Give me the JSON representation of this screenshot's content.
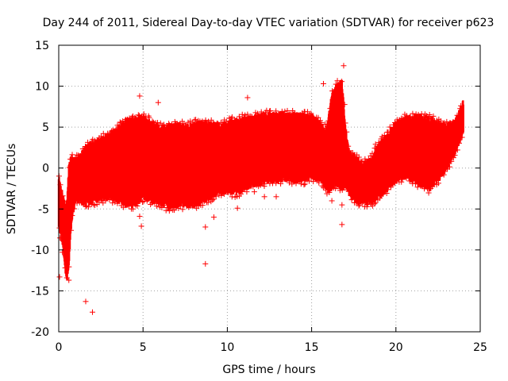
{
  "chart_data": {
    "type": "scatter",
    "title": "Day 244 of 2011, Sidereal Day-to-day VTEC variation (SDTVAR) for receiver p623",
    "xlabel": "GPS time / hours",
    "ylabel": "SDTVAR / TECUs",
    "xlim": [
      0,
      25
    ],
    "ylim": [
      -20,
      15
    ],
    "xticks": [
      0,
      5,
      10,
      15,
      20,
      25
    ],
    "yticks": [
      -20,
      -15,
      -10,
      -5,
      0,
      5,
      10,
      15
    ],
    "grid": true,
    "marker": "+",
    "color": "#ff0000",
    "series": [
      {
        "name": "SDTVAR",
        "upper_envelope": {
          "x": [
            0,
            0.2,
            0.4,
            0.5,
            0.6,
            0.7,
            0.8,
            1,
            1.3,
            1.6,
            2,
            2.5,
            3,
            3.5,
            3.8,
            4,
            4.5,
            5,
            5.5,
            6,
            6.5,
            7,
            7.5,
            8,
            8.5,
            9,
            9.5,
            10,
            10.5,
            11,
            11.5,
            12,
            12.5,
            13,
            13.5,
            14,
            14.5,
            15,
            15.5,
            15.8,
            16,
            16.2,
            16.5,
            16.8,
            17,
            17.2,
            17.5,
            18,
            18.5,
            19,
            19.5,
            20,
            20.5,
            21,
            21.5,
            22,
            22.5,
            23,
            23.5,
            24
          ],
          "y": [
            -1,
            -3,
            -5,
            -4,
            0,
            1,
            1.3,
            1,
            1.5,
            2.5,
            3,
            3.5,
            4,
            4.8,
            5.5,
            5.8,
            6,
            6.2,
            5.5,
            5,
            5.1,
            5.3,
            5,
            5.3,
            5.5,
            5.3,
            5.2,
            5.5,
            5.8,
            6,
            6.2,
            6.4,
            6.5,
            6.5,
            6.5,
            6.5,
            6.3,
            6.3,
            5.5,
            4.5,
            6,
            9,
            10,
            10.5,
            5,
            2,
            1.5,
            0.5,
            1,
            3,
            4,
            5.5,
            6,
            6.2,
            6.2,
            6,
            5.5,
            5.2,
            5.5,
            8
          ]
        },
        "lower_envelope": {
          "x": [
            0,
            0.2,
            0.4,
            0.5,
            0.6,
            0.7,
            0.8,
            1,
            1.3,
            1.6,
            2,
            2.5,
            3,
            3.5,
            3.8,
            4,
            4.5,
            5,
            5.5,
            6,
            6.5,
            7,
            7.5,
            8,
            8.5,
            9,
            9.5,
            10,
            10.5,
            11,
            11.5,
            12,
            12.5,
            13,
            13.5,
            14,
            14.5,
            15,
            15.5,
            15.8,
            16,
            16.2,
            16.5,
            16.8,
            17,
            17.2,
            17.5,
            18,
            18.5,
            19,
            19.5,
            20,
            20.5,
            21,
            21.5,
            22,
            22.5,
            23,
            23.5,
            24
          ],
          "y": [
            -7,
            -9,
            -12.5,
            -13.5,
            -12,
            -8,
            -6,
            -4,
            -4,
            -4.5,
            -4,
            -3.8,
            -3.5,
            -4,
            -4.2,
            -4.5,
            -4.5,
            -3.5,
            -4,
            -4.2,
            -4.8,
            -4.5,
            -4.5,
            -4.5,
            -4,
            -3.5,
            -3,
            -2.8,
            -3,
            -2.5,
            -2,
            -1.8,
            -1.5,
            -1.5,
            -1.3,
            -1.5,
            -1.5,
            -1,
            -1.5,
            -2.2,
            -2.8,
            -2.5,
            -2,
            -2.5,
            -2,
            -3,
            -4,
            -4.2,
            -4.2,
            -3.5,
            -2.5,
            -1.5,
            -1,
            -1.5,
            -2,
            -2.5,
            -1.5,
            0,
            2,
            4.5
          ]
        },
        "outliers": [
          {
            "x": 0.05,
            "y": -13.3
          },
          {
            "x": 0.6,
            "y": -13.7
          },
          {
            "x": 1.6,
            "y": -16.3
          },
          {
            "x": 2.0,
            "y": -17.6
          },
          {
            "x": 4.8,
            "y": 8.8
          },
          {
            "x": 5.9,
            "y": 8.0
          },
          {
            "x": 4.9,
            "y": -7.1
          },
          {
            "x": 4.8,
            "y": -5.9
          },
          {
            "x": 8.7,
            "y": -7.2
          },
          {
            "x": 8.7,
            "y": -11.7
          },
          {
            "x": 9.2,
            "y": -6.0
          },
          {
            "x": 10.6,
            "y": -4.9
          },
          {
            "x": 11.2,
            "y": 8.6
          },
          {
            "x": 11.0,
            "y": -2.2
          },
          {
            "x": 11.6,
            "y": -2.9
          },
          {
            "x": 12.2,
            "y": -3.5
          },
          {
            "x": 16.9,
            "y": 12.5
          },
          {
            "x": 16.8,
            "y": -6.9
          },
          {
            "x": 16.8,
            "y": -4.5
          },
          {
            "x": 17.0,
            "y": 5.5
          },
          {
            "x": 15.7,
            "y": 10.3
          },
          {
            "x": 16.2,
            "y": -4.0
          },
          {
            "x": 12.9,
            "y": -3.5
          }
        ]
      }
    ]
  }
}
